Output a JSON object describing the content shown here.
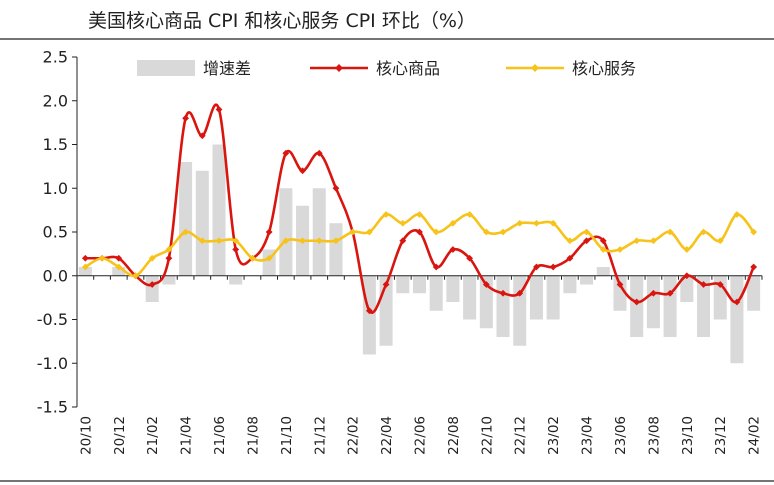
{
  "chart_data": {
    "type": "bar+line",
    "title": "美国核心商品 CPI 和核心服务 CPI 环比（%）",
    "ylim": [
      -1.5,
      2.5
    ],
    "yticks": [
      "2.5",
      "2.0",
      "1.5",
      "1.0",
      "0.5",
      "0.0",
      "-0.5",
      "-1.0",
      "-1.5"
    ],
    "ytick_values": [
      2.5,
      2.0,
      1.5,
      1.0,
      0.5,
      0.0,
      -0.5,
      -1.0,
      -1.5
    ],
    "xtick_labels": [
      "20/10",
      "20/12",
      "21/02",
      "21/04",
      "21/06",
      "21/08",
      "21/10",
      "21/12",
      "22/02",
      "22/04",
      "22/06",
      "22/08",
      "22/10",
      "22/12",
      "23/02",
      "23/04",
      "23/06",
      "23/08",
      "23/10",
      "23/12",
      "24/02"
    ],
    "legend_position": "top",
    "grid": false,
    "categories": [
      "20/10",
      "20/11",
      "20/12",
      "21/01",
      "21/02",
      "21/03",
      "21/04",
      "21/05",
      "21/06",
      "21/07",
      "21/08",
      "21/09",
      "21/10",
      "21/11",
      "21/12",
      "22/01",
      "22/02",
      "22/03",
      "22/04",
      "22/05",
      "22/06",
      "22/07",
      "22/08",
      "22/09",
      "22/10",
      "22/11",
      "22/12",
      "23/01",
      "23/02",
      "23/03",
      "23/04",
      "23/05",
      "23/06",
      "23/07",
      "23/08",
      "23/09",
      "23/10",
      "23/11",
      "23/12",
      "24/01",
      "24/02"
    ],
    "series": [
      {
        "name": "增速差",
        "kind": "bar",
        "color": "#d9d9d9",
        "values": [
          0.1,
          0.0,
          0.1,
          0.0,
          -0.3,
          -0.1,
          1.3,
          1.2,
          1.5,
          -0.1,
          0.0,
          0.3,
          1.0,
          0.8,
          1.0,
          0.6,
          0.0,
          -0.9,
          -0.8,
          -0.2,
          -0.2,
          -0.4,
          -0.3,
          -0.5,
          -0.6,
          -0.7,
          -0.8,
          -0.5,
          -0.5,
          -0.2,
          -0.1,
          0.1,
          -0.4,
          -0.7,
          -0.6,
          -0.7,
          -0.3,
          -0.7,
          -0.5,
          -1.0,
          -0.4
        ]
      },
      {
        "name": "核心商品",
        "kind": "line",
        "color": "#d9150f",
        "values": [
          0.2,
          0.2,
          0.2,
          0.0,
          -0.1,
          0.2,
          1.8,
          1.6,
          1.9,
          0.3,
          0.2,
          0.5,
          1.4,
          1.2,
          1.4,
          1.0,
          0.5,
          -0.4,
          -0.1,
          0.4,
          0.5,
          0.1,
          0.3,
          0.2,
          -0.1,
          -0.2,
          -0.2,
          0.1,
          0.1,
          0.2,
          0.4,
          0.4,
          -0.1,
          -0.3,
          -0.2,
          -0.2,
          0.0,
          -0.1,
          -0.1,
          -0.3,
          0.1
        ]
      },
      {
        "name": "核心服务",
        "kind": "line",
        "color": "#f7c31a",
        "values": [
          0.1,
          0.2,
          0.1,
          0.0,
          0.2,
          0.3,
          0.5,
          0.4,
          0.4,
          0.4,
          0.2,
          0.2,
          0.4,
          0.4,
          0.4,
          0.4,
          0.5,
          0.5,
          0.7,
          0.6,
          0.7,
          0.5,
          0.6,
          0.7,
          0.5,
          0.5,
          0.6,
          0.6,
          0.6,
          0.4,
          0.5,
          0.3,
          0.3,
          0.4,
          0.4,
          0.5,
          0.3,
          0.5,
          0.4,
          0.7,
          0.5
        ]
      }
    ]
  }
}
